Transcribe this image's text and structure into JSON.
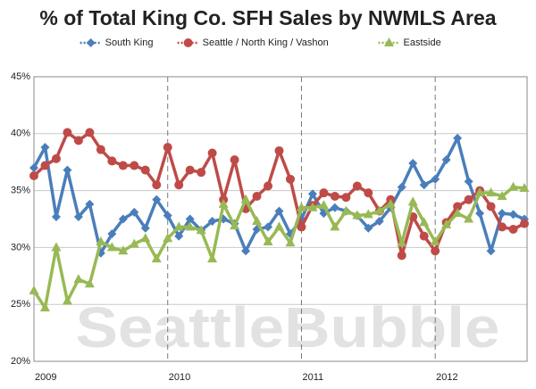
{
  "chart_data": {
    "type": "line",
    "title": "% of Total King Co. SFH Sales by NWMLS Area",
    "watermark": "SeattleBubble",
    "categories": [
      "2009",
      null,
      null,
      null,
      null,
      null,
      null,
      null,
      null,
      null,
      null,
      null,
      "2010",
      null,
      null,
      null,
      null,
      null,
      null,
      null,
      null,
      null,
      null,
      null,
      "2011",
      null,
      null,
      null,
      null,
      null,
      null,
      null,
      null,
      null,
      null,
      null,
      "2012",
      null,
      null,
      null,
      null,
      null,
      null,
      null,
      null
    ],
    "series": [
      {
        "name": "South King",
        "color": "#4a7ebb",
        "marker": "diamond",
        "values": [
          37.0,
          38.8,
          32.7,
          36.8,
          32.7,
          33.8,
          29.5,
          31.2,
          32.5,
          33.1,
          31.7,
          34.2,
          32.8,
          31.0,
          32.5,
          31.5,
          32.3,
          32.5,
          32.1,
          29.7,
          31.6,
          31.8,
          33.2,
          31.2,
          32.5,
          34.7,
          33.0,
          33.5,
          33.2,
          32.8,
          31.7,
          32.3,
          33.5,
          35.3,
          37.4,
          35.5,
          36.0,
          37.7,
          39.6,
          35.8,
          33.0,
          29.7,
          33.0,
          32.9,
          32.5
        ]
      },
      {
        "name": "Seattle / North King / Vashon",
        "color": "#be4b48",
        "marker": "circle",
        "values": [
          36.3,
          37.2,
          37.8,
          40.1,
          39.4,
          40.1,
          38.6,
          37.6,
          37.2,
          37.2,
          36.8,
          35.5,
          38.8,
          35.5,
          36.8,
          36.6,
          38.3,
          34.2,
          37.7,
          33.4,
          34.5,
          35.4,
          38.5,
          36.0,
          31.8,
          33.7,
          34.8,
          34.5,
          34.4,
          35.4,
          34.8,
          33.2,
          34.2,
          29.3,
          32.7,
          31.0,
          29.7,
          32.2,
          33.6,
          34.2,
          35.0,
          33.6,
          31.8,
          31.6,
          32.1
        ]
      },
      {
        "name": "Eastside",
        "color": "#98b954",
        "marker": "triangle",
        "values": [
          26.2,
          24.7,
          30.0,
          25.3,
          27.2,
          26.8,
          30.5,
          30.0,
          29.7,
          30.3,
          30.8,
          29.0,
          30.8,
          31.8,
          31.8,
          31.5,
          29.0,
          33.8,
          31.9,
          34.2,
          32.3,
          30.5,
          31.8,
          30.4,
          33.5,
          33.5,
          33.7,
          31.8,
          33.2,
          32.8,
          32.9,
          33.2,
          33.8,
          30.4,
          34.0,
          32.2,
          30.5,
          32.0,
          33.0,
          32.5,
          34.8,
          34.8,
          34.5,
          35.3,
          35.2
        ]
      }
    ],
    "ylim": [
      20,
      45
    ],
    "yticks": [
      {
        "value": 20,
        "label": "20%"
      },
      {
        "value": 25,
        "label": "25%"
      },
      {
        "value": 30,
        "label": "30%"
      },
      {
        "value": 35,
        "label": "35%"
      },
      {
        "value": 40,
        "label": "40%"
      },
      {
        "value": 45,
        "label": "45%"
      }
    ],
    "grid": true,
    "legend": "top"
  }
}
